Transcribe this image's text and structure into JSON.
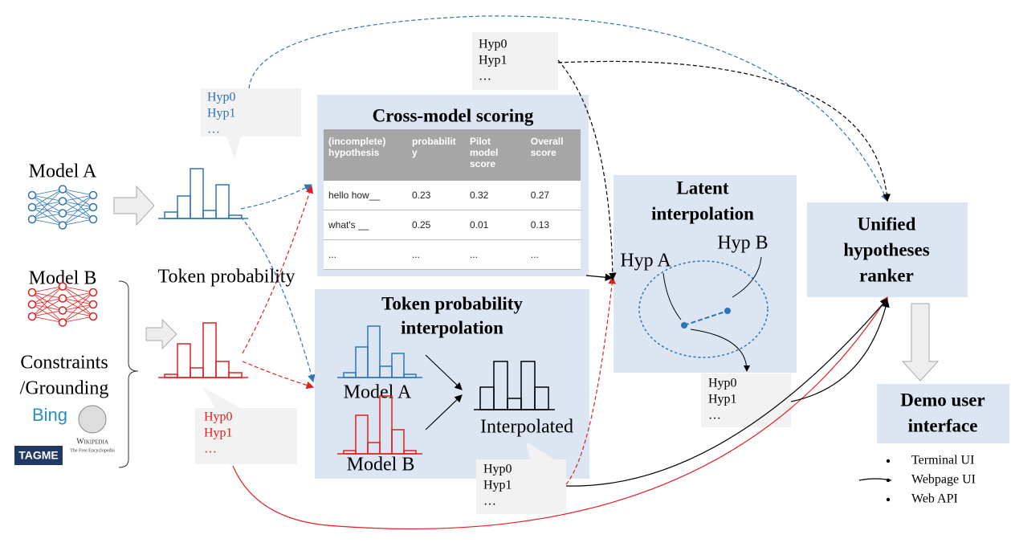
{
  "inputs": {
    "model_a": "Model A",
    "model_b": "Model B",
    "token_probability": "Token probability",
    "constraints": [
      "Constraints",
      "/Grounding"
    ],
    "sources": {
      "bing": "Bing",
      "wikipedia": "Wikipedia",
      "wikipedia_tagline": "The Free Encyclopedia",
      "tagme": "TAGME"
    }
  },
  "bubbles": {
    "model_a": [
      "Hyp0",
      "Hyp1",
      "…"
    ],
    "model_b": [
      "Hyp0",
      "Hyp1",
      "…"
    ],
    "cross_model": [
      "Hyp0",
      "Hyp1",
      "…"
    ],
    "token_interpolation": [
      "Hyp0",
      "Hyp1",
      "…"
    ],
    "latent": [
      "Hyp0",
      "Hyp1",
      "…"
    ]
  },
  "cross_model_scoring": {
    "title": "Cross-model scoring",
    "header": [
      "(incomplete) hypothesis",
      "probability",
      "Pilot model score",
      "Overall score"
    ],
    "rows": [
      [
        "hello how__",
        "0.23",
        "0.32",
        "0.27"
      ],
      [
        "what's __",
        "0.25",
        "0.01",
        "0.13"
      ],
      [
        "...",
        "...",
        "...",
        "..."
      ]
    ]
  },
  "token_interpolation": {
    "title": [
      "Token probability",
      "interpolation"
    ],
    "model_a": "Model A",
    "model_b": "Model B",
    "interpolated": "Interpolated"
  },
  "latent_interpolation": {
    "title": [
      "Latent",
      "interpolation"
    ],
    "hyp_a": "Hyp A",
    "hyp_b": "Hyp B"
  },
  "ranker": {
    "title": [
      "Unified",
      "hypotheses",
      "ranker"
    ]
  },
  "demo": {
    "title": [
      "Demo user",
      "interface"
    ],
    "items": [
      "Terminal UI",
      "Webpage UI",
      "Web API"
    ]
  }
}
